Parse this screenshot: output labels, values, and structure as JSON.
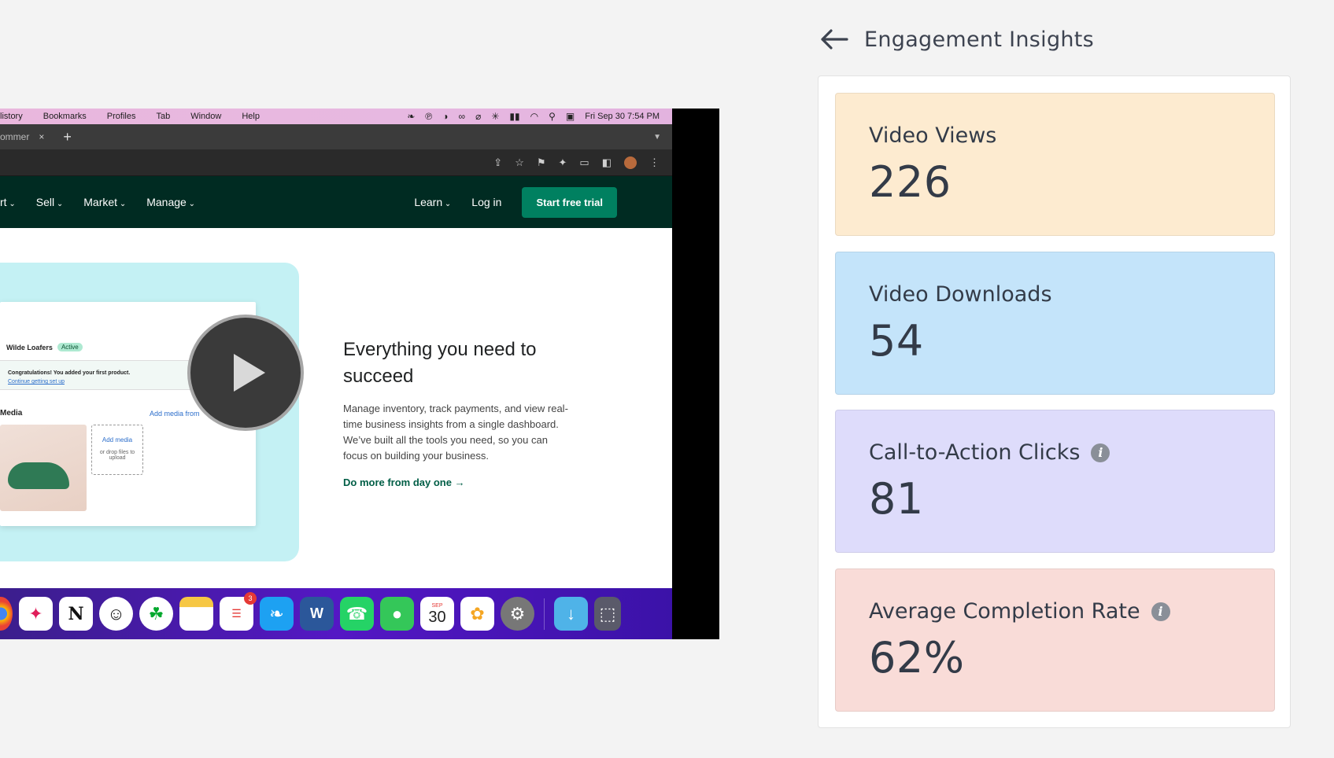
{
  "video": {
    "menubar": {
      "items": [
        "listory",
        "Bookmarks",
        "Profiles",
        "Tab",
        "Window",
        "Help"
      ],
      "datetime": "Fri Sep 30  7:54 PM"
    },
    "tab": {
      "fragment": "ommer",
      "close": "×",
      "new": "+"
    },
    "site_nav": {
      "left_items": [
        "rt",
        "Sell",
        "Market",
        "Manage"
      ],
      "learn": "Learn",
      "login": "Log in",
      "cta": "Start free trial"
    },
    "admin": {
      "store": "Wilde Loafers",
      "badge": "Active",
      "banner_text": "Congratulations! You added your first product.",
      "banner_link": "Continue getting set up",
      "media_title": "Media",
      "add_media_from": "Add media from",
      "add_media": "Add media",
      "drop_hint": "or drop files to upload"
    },
    "hero": {
      "title": "Everything you need to succeed",
      "body": "Manage inventory, track payments, and view real-time business insights from a single dashboard. We’ve built all the tools you need, so you can focus on building your business.",
      "link": "Do more from day one →"
    },
    "dock": {
      "reminders_badge": "3",
      "calendar_month": "SEP",
      "calendar_day": "30"
    }
  },
  "insights": {
    "title": "Engagement Insights",
    "cards": [
      {
        "label": "Video Views",
        "value": "226",
        "color": "#fdebd0"
      },
      {
        "label": "Video Downloads",
        "value": "54",
        "color": "#c4e4fa"
      },
      {
        "label": "Call-to-Action Clicks",
        "value": "81",
        "color": "#dedcfb"
      },
      {
        "label": "Average Completion Rate",
        "value": "62%",
        "color": "#f9dcd8"
      }
    ]
  }
}
